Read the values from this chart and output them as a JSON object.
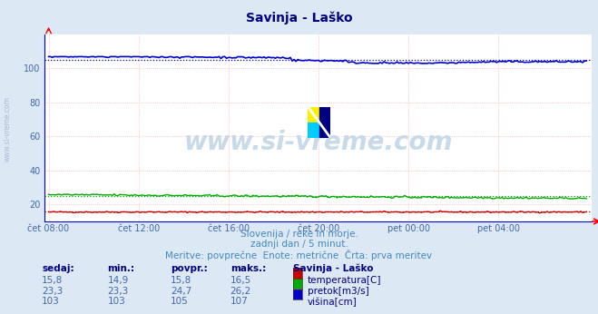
{
  "title": "Savinja - Laško",
  "title_color": "#000080",
  "bg_color": "#dce9f5",
  "plot_bg_color": "#ffffff",
  "grid_color": "#ffb0b0",
  "grid_dot_color": "#ffcccc",
  "xlabel_color": "#4466aa",
  "ylabel_color": "#4466aa",
  "n_points": 288,
  "ylim": [
    10,
    120
  ],
  "y_ticks": [
    20,
    40,
    60,
    80,
    100
  ],
  "x_tick_labels": [
    "čet 08:00",
    "čet 12:00",
    "čet 16:00",
    "čet 20:00",
    "pet 00:00",
    "pet 04:00"
  ],
  "temperatura_color": "#cc0000",
  "pretok_color": "#00aa00",
  "visina_color": "#0000cc",
  "temperatura_avg": 15.8,
  "pretok_avg": 24.7,
  "visina_avg": 105.0,
  "watermark": "www.si-vreme.com",
  "watermark_color": "#c8daea",
  "left_label": "www.si-vreme.com",
  "left_label_color": "#aabbd0",
  "subtitle1": "Slovenija / reke in morje.",
  "subtitle2": "zadnji dan / 5 minut.",
  "subtitle3": "Meritve: povprečne  Enote: metrične  Črta: prva meritev",
  "subtitle_color": "#4488bb",
  "legend_title": "Savinja - Laško",
  "legend_title_color": "#000080",
  "table_value_color": "#4466aa",
  "table_header_color": "#000080",
  "table_headers": [
    "sedaj:",
    "min.:",
    "povpr.:",
    "maks.:"
  ],
  "row1": [
    "15,8",
    "14,9",
    "15,8",
    "16,5"
  ],
  "row2": [
    "23,3",
    "23,3",
    "24,7",
    "26,2"
  ],
  "row3": [
    "103",
    "103",
    "105",
    "107"
  ],
  "legend_labels": [
    "temperatura[C]",
    "pretok[m3/s]",
    "višina[cm]"
  ],
  "logo_colors": [
    "#ffee00",
    "#00ccff",
    "#000080"
  ],
  "spine_color": "#0000cc"
}
